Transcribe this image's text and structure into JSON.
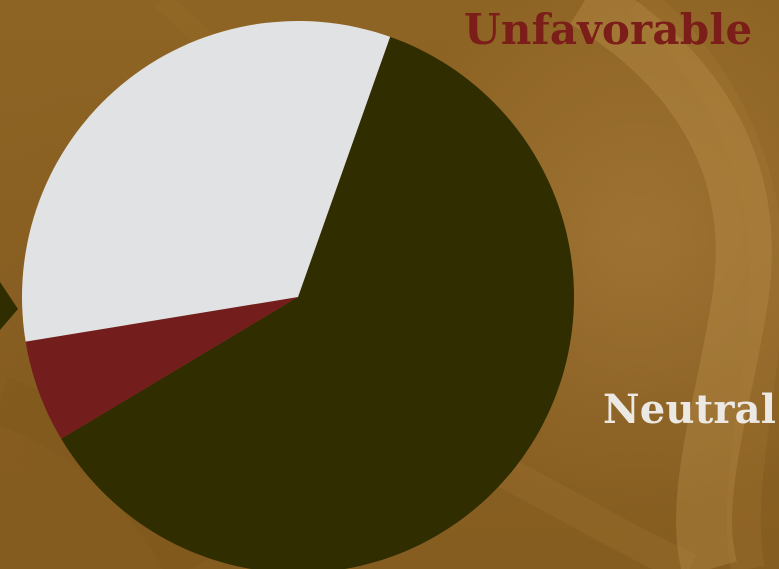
{
  "chart_data": {
    "type": "pie",
    "slices": [
      {
        "label": "",
        "value": 61,
        "color": "#302d01"
      },
      {
        "label": "Unfavorable",
        "value": 6,
        "color": "#741d1d"
      },
      {
        "label": "Neutral",
        "value": 33,
        "color": "#e0e2e4"
      }
    ]
  },
  "labels": {
    "unfavorable": "Unfavorable",
    "neutral": "Neutral"
  },
  "colors": {
    "background": "#8a5f21",
    "unfavorable_text": "#7b1d18",
    "neutral_text": "#ece9e4"
  }
}
